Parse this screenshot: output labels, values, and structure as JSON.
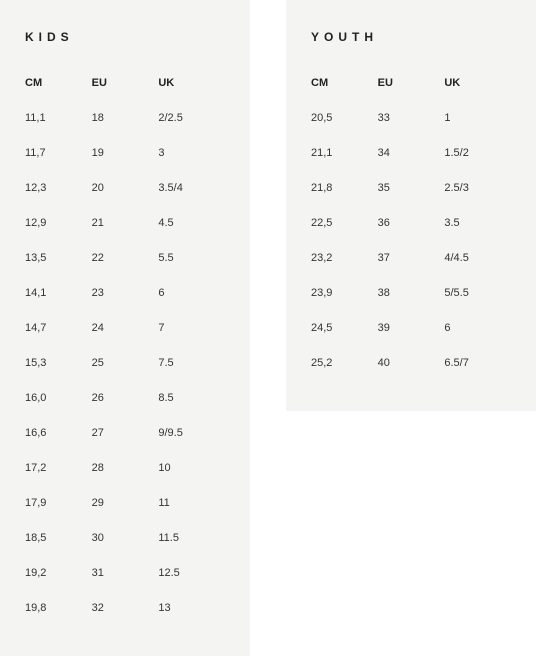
{
  "kids": {
    "title": "KIDS",
    "headers": [
      "CM",
      "EU",
      "UK"
    ],
    "rows": [
      [
        "11,1",
        "18",
        "2/2.5"
      ],
      [
        "11,7",
        "19",
        "3"
      ],
      [
        "12,3",
        "20",
        "3.5/4"
      ],
      [
        "12,9",
        "21",
        "4.5"
      ],
      [
        "13,5",
        "22",
        "5.5"
      ],
      [
        "14,1",
        "23",
        "6"
      ],
      [
        "14,7",
        "24",
        "7"
      ],
      [
        "15,3",
        "25",
        "7.5"
      ],
      [
        "16,0",
        "26",
        "8.5"
      ],
      [
        "16,6",
        "27",
        "9/9.5"
      ],
      [
        "17,2",
        "28",
        "10"
      ],
      [
        "17,9",
        "29",
        "11"
      ],
      [
        "18,5",
        "30",
        "11.5"
      ],
      [
        "19,2",
        "31",
        "12.5"
      ],
      [
        "19,8",
        "32",
        "13"
      ]
    ]
  },
  "youth": {
    "title": "YOUTH",
    "headers": [
      "CM",
      "EU",
      "UK"
    ],
    "rows": [
      [
        "20,5",
        "33",
        "1"
      ],
      [
        "21,1",
        "34",
        "1.5/2"
      ],
      [
        "21,8",
        "35",
        "2.5/3"
      ],
      [
        "22,5",
        "36",
        "3.5"
      ],
      [
        "23,2",
        "37",
        "4/4.5"
      ],
      [
        "23,9",
        "38",
        "5/5.5"
      ],
      [
        "24,5",
        "39",
        "6"
      ],
      [
        "25,2",
        "40",
        "6.5/7"
      ]
    ]
  },
  "style": {
    "panel_bg": "#f4f4f3",
    "text_color": "#333333",
    "title_color": "#222222",
    "title_fontsize": 12,
    "cell_fontsize": 11,
    "title_letter_spacing": 5
  }
}
